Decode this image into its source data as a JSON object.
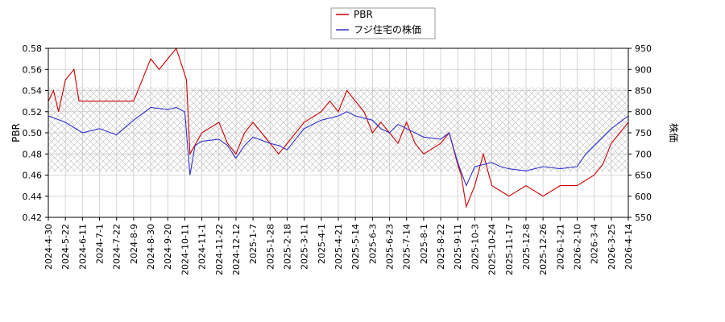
{
  "chart_data": {
    "type": "line",
    "legend": {
      "placement": "top-center",
      "entries": [
        "PBR",
        "フジ住宅の株価"
      ]
    },
    "grid": true,
    "band": {
      "description": "cross-hatched range band",
      "y_from": 0.463,
      "y_to": 0.543
    },
    "y_left": {
      "label": "PBR",
      "ylim": [
        0.42,
        0.58
      ],
      "ticks": [
        "0.42",
        "0.44",
        "0.46",
        "0.48",
        "0.50",
        "0.52",
        "0.54",
        "0.56",
        "0.58"
      ]
    },
    "y_right": {
      "label": "株価",
      "ylim": [
        550,
        950
      ],
      "ticks": [
        "550",
        "600",
        "650",
        "700",
        "750",
        "800",
        "850",
        "900",
        "950"
      ]
    },
    "x_ticks": [
      "2024-4-30",
      "2024-5-22",
      "2024-6-11",
      "2024-7-1",
      "2024-7-22",
      "2024-8-9",
      "2024-8-30",
      "2024-9-20",
      "2024-10-11",
      "2024-11-1",
      "2024-11-22",
      "2024-12-12",
      "2025-1-7",
      "2025-1-28",
      "2025-2-18",
      "2025-3-11",
      "2025-4-1",
      "2025-4-21",
      "2025-5-14",
      "2025-6-3",
      "2025-6-23",
      "2025-7-14",
      "2025-8-1",
      "2025-8-22",
      "2025-9-11",
      "2025-10-3",
      "2025-10-24",
      "2025-11-17",
      "2025-12-8",
      "2025-12-26",
      "2026-1-21",
      "2026-2-10",
      "2026-3-4",
      "2026-3-25",
      "2026-4-14"
    ],
    "series": [
      {
        "name": "PBR",
        "color": "#cc0000",
        "axis": "left",
        "points": [
          [
            0,
            0.53
          ],
          [
            0.3,
            0.54
          ],
          [
            0.6,
            0.52
          ],
          [
            1,
            0.55
          ],
          [
            1.5,
            0.56
          ],
          [
            1.8,
            0.53
          ],
          [
            3,
            0.53
          ],
          [
            5,
            0.53
          ],
          [
            5.5,
            0.55
          ],
          [
            6,
            0.57
          ],
          [
            6.5,
            0.56
          ],
          [
            7,
            0.57
          ],
          [
            7.5,
            0.58
          ],
          [
            7.9,
            0.56
          ],
          [
            8.1,
            0.55
          ],
          [
            8.3,
            0.48
          ],
          [
            9,
            0.5
          ],
          [
            10,
            0.51
          ],
          [
            10.5,
            0.49
          ],
          [
            11,
            0.48
          ],
          [
            11.5,
            0.5
          ],
          [
            12,
            0.51
          ],
          [
            12.5,
            0.5
          ],
          [
            13,
            0.49
          ],
          [
            13.5,
            0.48
          ],
          [
            14,
            0.49
          ],
          [
            15,
            0.51
          ],
          [
            16,
            0.52
          ],
          [
            16.5,
            0.53
          ],
          [
            17,
            0.52
          ],
          [
            17.5,
            0.54
          ],
          [
            18,
            0.53
          ],
          [
            18.5,
            0.52
          ],
          [
            19,
            0.5
          ],
          [
            19.5,
            0.51
          ],
          [
            20,
            0.5
          ],
          [
            20.5,
            0.49
          ],
          [
            21,
            0.51
          ],
          [
            21.5,
            0.49
          ],
          [
            22,
            0.48
          ],
          [
            23,
            0.49
          ],
          [
            23.5,
            0.5
          ],
          [
            24,
            0.47
          ],
          [
            24.2,
            0.46
          ],
          [
            24.5,
            0.43
          ],
          [
            25,
            0.45
          ],
          [
            25.5,
            0.48
          ],
          [
            26,
            0.45
          ],
          [
            27,
            0.44
          ],
          [
            28,
            0.45
          ],
          [
            29,
            0.44
          ],
          [
            30,
            0.45
          ],
          [
            31,
            0.45
          ],
          [
            32,
            0.46
          ],
          [
            32.5,
            0.47
          ],
          [
            33,
            0.49
          ],
          [
            34,
            0.51
          ],
          [
            35,
            0.52
          ],
          [
            36,
            0.53
          ],
          [
            37,
            0.54
          ],
          [
            38,
            0.55
          ],
          [
            38.3,
            0.5
          ],
          [
            38.6,
            0.49
          ],
          [
            39.5,
            0.5
          ],
          [
            40,
            0.51
          ],
          [
            40.3,
            0.49
          ],
          [
            40.6,
            0.5
          ],
          [
            41,
            0.51
          ],
          [
            42,
            0.52
          ],
          [
            43,
            0.51
          ],
          [
            43.3,
            0.5
          ],
          [
            43.6,
            0.53
          ],
          [
            44,
            0.54
          ],
          [
            44.5,
            0.57
          ],
          [
            45,
            0.54
          ],
          [
            45.5,
            0.53
          ],
          [
            46,
            0.52
          ],
          [
            46.5,
            0.51
          ],
          [
            47,
            0.52
          ]
        ]
      },
      {
        "name": "フジ住宅の株価",
        "color": "#3333cc",
        "axis": "right",
        "points": [
          [
            0,
            790
          ],
          [
            1,
            775
          ],
          [
            2,
            750
          ],
          [
            3,
            760
          ],
          [
            4,
            745
          ],
          [
            5,
            780
          ],
          [
            6,
            810
          ],
          [
            7,
            805
          ],
          [
            7.5,
            810
          ],
          [
            8,
            800
          ],
          [
            8.3,
            650
          ],
          [
            8.6,
            720
          ],
          [
            9,
            730
          ],
          [
            10,
            735
          ],
          [
            10.5,
            720
          ],
          [
            11,
            690
          ],
          [
            11.5,
            720
          ],
          [
            12,
            740
          ],
          [
            13,
            725
          ],
          [
            13.5,
            720
          ],
          [
            14,
            710
          ],
          [
            15,
            760
          ],
          [
            16,
            780
          ],
          [
            17,
            790
          ],
          [
            17.5,
            800
          ],
          [
            18,
            790
          ],
          [
            19,
            780
          ],
          [
            19.5,
            760
          ],
          [
            20,
            750
          ],
          [
            20.5,
            770
          ],
          [
            21,
            760
          ],
          [
            22,
            740
          ],
          [
            23,
            735
          ],
          [
            23.5,
            750
          ],
          [
            24,
            680
          ],
          [
            24.5,
            625
          ],
          [
            25,
            670
          ],
          [
            26,
            680
          ],
          [
            26.5,
            670
          ],
          [
            27,
            665
          ],
          [
            28,
            660
          ],
          [
            29,
            670
          ],
          [
            30,
            665
          ],
          [
            31,
            670
          ],
          [
            31.5,
            700
          ],
          [
            32,
            720
          ],
          [
            33,
            760
          ],
          [
            34,
            790
          ],
          [
            35,
            810
          ],
          [
            36,
            820
          ],
          [
            37,
            825
          ],
          [
            38,
            830
          ],
          [
            38.3,
            790
          ],
          [
            38.6,
            810
          ],
          [
            39,
            830
          ],
          [
            40,
            790
          ],
          [
            40.3,
            780
          ],
          [
            40.6,
            800
          ],
          [
            41,
            810
          ],
          [
            42,
            830
          ],
          [
            43,
            820
          ],
          [
            43.3,
            810
          ],
          [
            43.6,
            860
          ],
          [
            44,
            880
          ],
          [
            44.5,
            920
          ],
          [
            45,
            850
          ],
          [
            45.5,
            840
          ],
          [
            46,
            830
          ],
          [
            46.5,
            835
          ],
          [
            47,
            810
          ]
        ]
      }
    ]
  }
}
